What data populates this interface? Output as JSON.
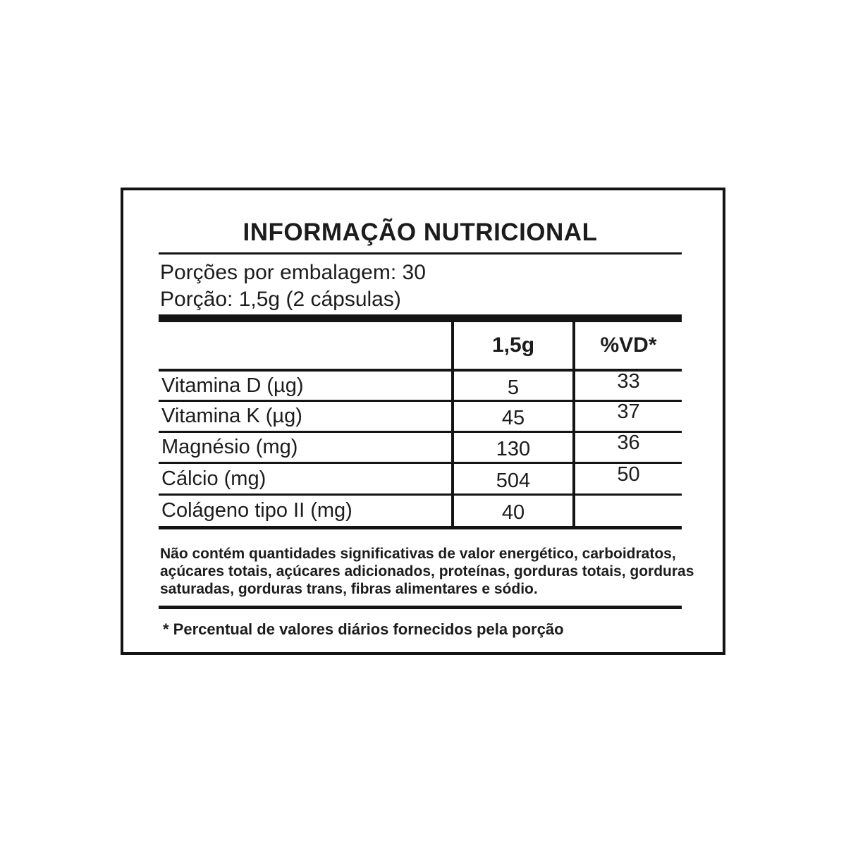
{
  "label": {
    "title": "INFORMAÇÃO NUTRICIONAL",
    "servings_per_package_line": "Porções por embalagem: 30",
    "serving_size_line": "Porção: 1,5g (2 cápsulas)",
    "table": {
      "col_amount": "1,5g",
      "col_dv": "%VD*",
      "rows": [
        {
          "nutrient": "Vitamina D (µg)",
          "amount": "5",
          "dv": "33"
        },
        {
          "nutrient": "Vitamina K (µg)",
          "amount": "45",
          "dv": "37"
        },
        {
          "nutrient": "Magnésio (mg)",
          "amount": "130",
          "dv": "36"
        },
        {
          "nutrient": "Cálcio (mg)",
          "amount": "504",
          "dv": "50"
        },
        {
          "nutrient": "Colágeno tipo II (mg)",
          "amount": "40",
          "dv": ""
        }
      ]
    },
    "disclaimer_lines": [
      "Não contém quantidades significativas de valor energético, carboidratos,",
      "açúcares totais, açúcares adicionados, proteínas, gorduras totais, gorduras",
      "saturadas, gorduras trans, fibras alimentares e sódio."
    ],
    "footnote": "* Percentual de valores diários fornecidos pela porção",
    "colors": {
      "background": "#ffffff",
      "ink": "#141414"
    }
  }
}
